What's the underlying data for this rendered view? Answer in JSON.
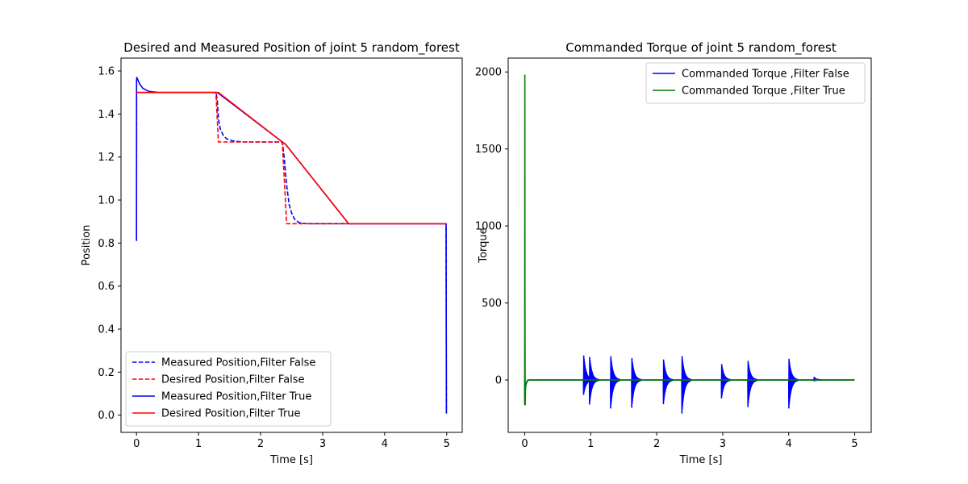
{
  "chart_data": [
    {
      "type": "line",
      "title": "Desired and Measured Position of joint 5 random_forest",
      "xlabel": "Time [s]",
      "ylabel": "Position",
      "xlim": [
        -0.25,
        5.25
      ],
      "ylim": [
        -0.08,
        1.66
      ],
      "xticks": [
        "0",
        "1",
        "2",
        "3",
        "4",
        "5"
      ],
      "yticks": [
        "0.0",
        "0.2",
        "0.4",
        "0.6",
        "0.8",
        "1.0",
        "1.2",
        "1.4",
        "1.6"
      ],
      "legend_position": "lower-left",
      "grid": false,
      "series": [
        {
          "name": "Measured Position,Filter False",
          "color": "#0000ff",
          "style": "dashed",
          "x": [
            0,
            0.001,
            0.01,
            0.03,
            0.1,
            0.2,
            0.4,
            1.0,
            1.28,
            1.3,
            1.32,
            1.35,
            1.4,
            1.45,
            1.55,
            1.7,
            2.0,
            2.35,
            2.38,
            2.42,
            2.46,
            2.5,
            2.55,
            2.62,
            2.75,
            3.0,
            3.5,
            4.5,
            4.99,
            4.995,
            5.0
          ],
          "y": [
            0.81,
            1.5,
            1.5,
            1.5,
            1.5,
            1.5,
            1.5,
            1.5,
            1.5,
            1.47,
            1.38,
            1.33,
            1.3,
            1.285,
            1.275,
            1.27,
            1.27,
            1.27,
            1.2,
            1.07,
            0.98,
            0.94,
            0.91,
            0.895,
            0.89,
            0.89,
            0.89,
            0.89,
            0.89,
            0.01,
            0.01
          ]
        },
        {
          "name": "Desired Position,Filter False",
          "color": "#ff0000",
          "style": "dashed",
          "x": [
            0,
            0.001,
            1.28,
            1.32,
            2.35,
            2.42,
            4.99,
            5.0
          ],
          "y": [
            1.5,
            1.5,
            1.5,
            1.27,
            1.27,
            0.89,
            0.89,
            0.89
          ]
        },
        {
          "name": "Measured Position,Filter True",
          "color": "#0000ff",
          "style": "solid",
          "x": [
            0,
            0.001,
            0.005,
            0.02,
            0.05,
            0.1,
            0.2,
            0.35,
            0.5,
            1.28,
            1.3,
            1.35,
            2.35,
            2.4,
            3.42,
            3.45,
            4.99,
            4.995,
            5.0
          ],
          "y": [
            0.81,
            1.55,
            1.57,
            1.56,
            1.54,
            1.52,
            1.505,
            1.5,
            1.5,
            1.5,
            1.5,
            1.49,
            1.27,
            1.26,
            0.89,
            0.89,
            0.89,
            0.01,
            0.01
          ]
        },
        {
          "name": "Desired Position,Filter True",
          "color": "#ff0000",
          "style": "solid",
          "x": [
            0,
            1.28,
            1.32,
            2.35,
            2.4,
            3.42,
            3.45,
            5.0
          ],
          "y": [
            1.5,
            1.5,
            1.5,
            1.27,
            1.26,
            0.89,
            0.89,
            0.89
          ]
        }
      ]
    },
    {
      "type": "line",
      "title": "Commanded Torque of joint 5 random_forest",
      "xlabel": "Time [s]",
      "ylabel": "Torque",
      "xlim": [
        -0.25,
        5.25
      ],
      "ylim": [
        -340,
        2090
      ],
      "xticks": [
        "0",
        "1",
        "2",
        "3",
        "4",
        "5"
      ],
      "yticks": [
        "0",
        "500",
        "1000",
        "1500",
        "2000"
      ],
      "legend_position": "upper-right",
      "grid": false,
      "series": [
        {
          "name": "Commanded Torque ,Filter False",
          "color": "#0000ff",
          "bursts": [
            {
              "t": 0.89,
              "amp_up": 180,
              "amp_down": 100
            },
            {
              "t": 0.98,
              "amp_up": 155,
              "amp_down": 160
            },
            {
              "t": 1.3,
              "amp_up": 175,
              "amp_down": 195
            },
            {
              "t": 1.62,
              "amp_up": 160,
              "amp_down": 190
            },
            {
              "t": 2.1,
              "amp_up": 150,
              "amp_down": 165
            },
            {
              "t": 2.38,
              "amp_up": 175,
              "amp_down": 230
            },
            {
              "t": 2.98,
              "amp_up": 115,
              "amp_down": 125
            },
            {
              "t": 3.38,
              "amp_up": 140,
              "amp_down": 185
            },
            {
              "t": 4.0,
              "amp_up": 155,
              "amp_down": 195
            },
            {
              "t": 4.38,
              "amp_up": 20,
              "amp_down": 5
            }
          ]
        },
        {
          "name": "Commanded Torque ,Filter True",
          "color": "#008000",
          "x": [
            0,
            0.002,
            0.005,
            0.008,
            0.012,
            0.02,
            0.04,
            0.08,
            0.2,
            1.0,
            2.0,
            3.0,
            4.0,
            5.0
          ],
          "y": [
            -160,
            1980,
            300,
            -160,
            -60,
            -20,
            -5,
            0,
            0,
            0,
            0,
            0,
            0,
            0
          ]
        }
      ]
    }
  ]
}
